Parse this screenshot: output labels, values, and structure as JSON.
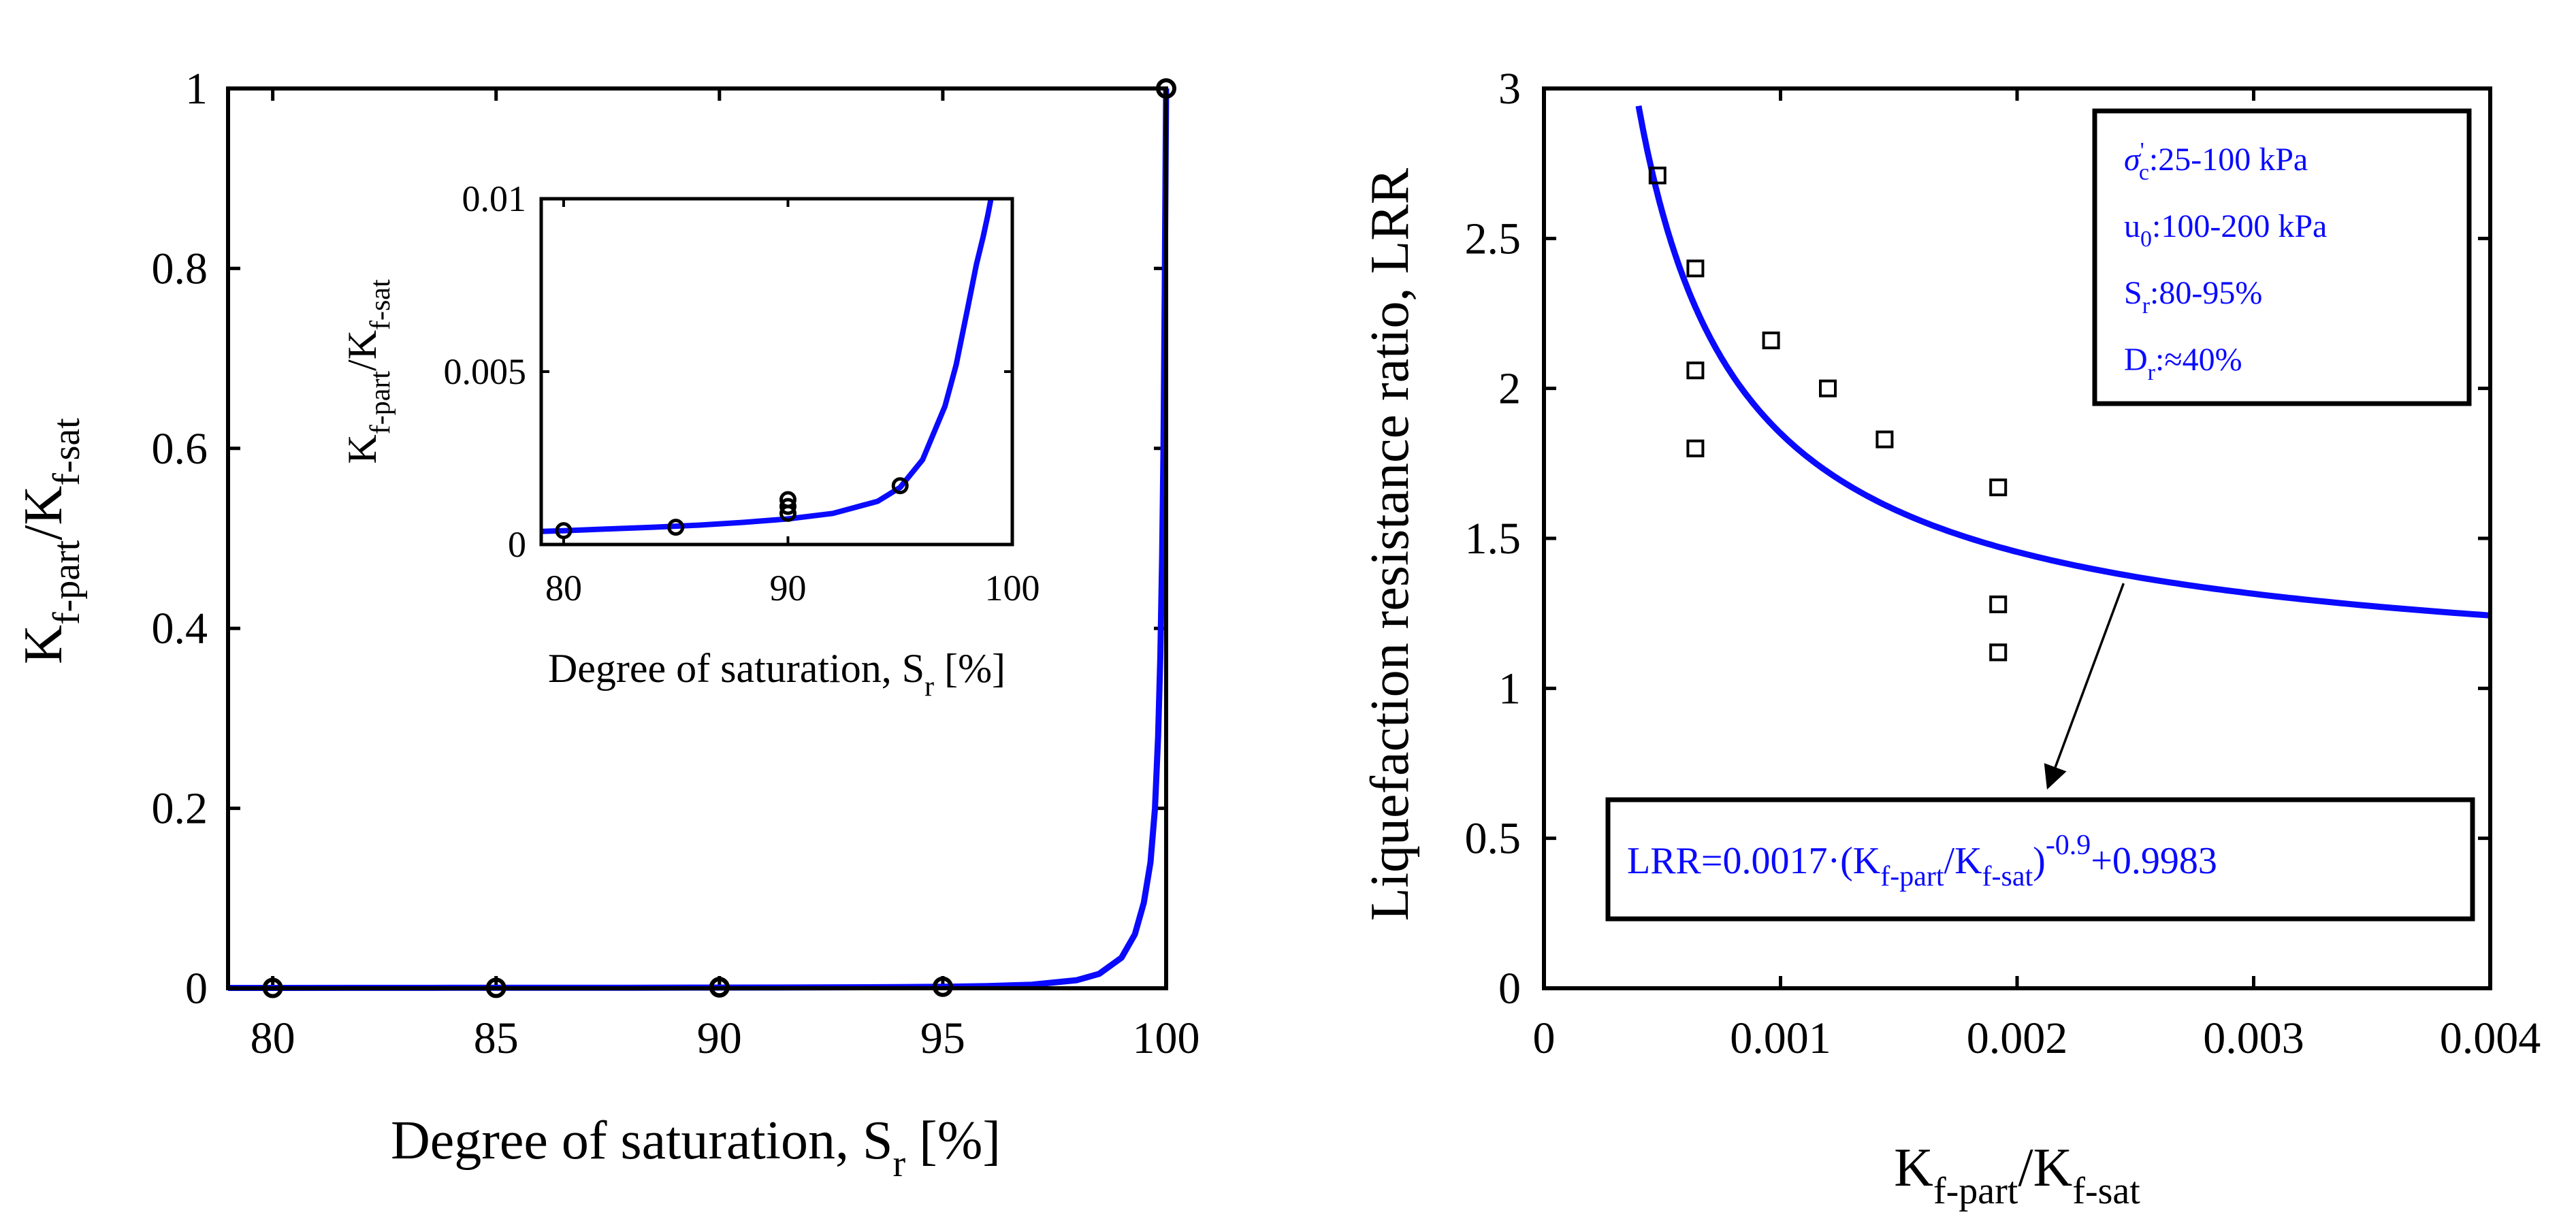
{
  "chart_data": [
    {
      "id": "left",
      "type": "line",
      "xlabel": {
        "main": "Degree of saturation, S",
        "sub": "r",
        "tail": " [%]"
      },
      "ylabel": {
        "k1": "K",
        "s1": "f-part",
        "slash": "/K",
        "s2": "f-sat"
      },
      "xlim": [
        79,
        100
      ],
      "ylim": [
        0,
        1
      ],
      "xticks": [
        80,
        85,
        90,
        95,
        100
      ],
      "yticks": [
        0,
        0.2,
        0.4,
        0.6,
        0.8,
        1
      ],
      "ytick_labels": [
        "0",
        "0.2",
        "0.4",
        "0.6",
        "0.8",
        "1"
      ],
      "curve": {
        "name": "fit",
        "color": "#0a0aff",
        "x": [
          79,
          80,
          82,
          84,
          85,
          86,
          88,
          90,
          92,
          94,
          95,
          96,
          97,
          98,
          98.5,
          99,
          99.3,
          99.5,
          99.65,
          99.75,
          99.82,
          99.87,
          99.91,
          99.94,
          99.97,
          99.99,
          100
        ],
        "y": [
          0.00038,
          0.0004,
          0.00045,
          0.0005,
          0.00053,
          0.00056,
          0.00064,
          0.00074,
          0.0009,
          0.00125,
          0.00165,
          0.00245,
          0.004,
          0.009,
          0.016,
          0.034,
          0.06,
          0.095,
          0.14,
          0.2,
          0.28,
          0.37,
          0.48,
          0.6,
          0.78,
          0.93,
          1.0
        ]
      },
      "points": {
        "name": "measured",
        "x": [
          80,
          85,
          90,
          90,
          90,
          95,
          100
        ],
        "y": [
          0.0004,
          0.0005,
          0.0009,
          0.0011,
          0.0013,
          0.0017,
          1.0
        ]
      },
      "inset": {
        "xlabel": {
          "main": "Degree of saturation, S",
          "sub": "r",
          "tail": " [%]"
        },
        "ylabel": {
          "k1": "K",
          "s1": "f-part",
          "slash": "/K",
          "s2": "f-sat"
        },
        "xlim": [
          79,
          100
        ],
        "ylim": [
          0,
          0.01
        ],
        "xticks": [
          80,
          90,
          100
        ],
        "yticks": [
          0,
          0.005,
          0.01
        ],
        "ytick_labels": [
          "0",
          "0.005",
          "0.01"
        ],
        "curve_x": [
          79,
          80,
          82,
          84,
          86,
          88,
          90,
          92,
          94,
          95,
          96,
          97,
          97.5,
          98,
          98.4,
          98.7,
          98.9,
          99.05
        ],
        "curve_y": [
          0.00038,
          0.0004,
          0.00045,
          0.0005,
          0.00056,
          0.00064,
          0.00074,
          0.0009,
          0.00125,
          0.00165,
          0.00245,
          0.004,
          0.0052,
          0.0068,
          0.0081,
          0.0089,
          0.0095,
          0.01
        ],
        "points_x": [
          80,
          85,
          90,
          90,
          90,
          95
        ],
        "points_y": [
          0.0004,
          0.0005,
          0.0009,
          0.0011,
          0.0013,
          0.0017
        ]
      }
    },
    {
      "id": "right",
      "type": "scatter",
      "xlabel": {
        "k1": "K",
        "s1": "f-part",
        "slash": "/K",
        "s2": "f-sat"
      },
      "ylabel": "Liquefaction resistance ratio, LRR",
      "xlim": [
        0,
        0.004
      ],
      "ylim": [
        0,
        3
      ],
      "xticks": [
        0,
        0.001,
        0.002,
        0.003,
        0.004
      ],
      "xtick_labels": [
        "0",
        "0.001",
        "0.002",
        "0.003",
        "0.004"
      ],
      "yticks": [
        0,
        0.5,
        1,
        1.5,
        2,
        2.5,
        3
      ],
      "ytick_labels": [
        "0",
        "0.5",
        "1",
        "1.5",
        "2",
        "2.5",
        "3"
      ],
      "points": {
        "name": "test data",
        "x": [
          0.00048,
          0.00064,
          0.00064,
          0.00064,
          0.00096,
          0.0012,
          0.00144,
          0.00192,
          0.00192,
          0.00192
        ],
        "y": [
          2.71,
          2.4,
          2.06,
          1.8,
          2.16,
          2.0,
          1.83,
          1.67,
          1.28,
          1.12
        ]
      },
      "fit": {
        "a": 0.0017,
        "b": -0.9,
        "c": 0.9983,
        "x_start": 0.0004,
        "x_end": 0.004,
        "color": "#0a0aff"
      },
      "equation": {
        "lead": "LRR=0.0017·(K",
        "s1": "f-part",
        "mid": "/K",
        "s2": "f-sat",
        "close": ")",
        "exp": "-0.9",
        "tail": "+0.9983"
      },
      "legend_box": {
        "line1": {
          "sym": "σ",
          "sup": "'",
          "sub": "c",
          "text": ":25-100 kPa"
        },
        "line2": {
          "sym": "u",
          "sub": "0",
          "text": ":100-200 kPa"
        },
        "line3": {
          "sym": "S",
          "sub": "r",
          "text": ":80-95%"
        },
        "line4": {
          "sym": "D",
          "sub": "r",
          "text": ":≈40%"
        }
      },
      "annotation_arrow": {
        "from": [
          0.00245,
          1.35
        ],
        "to": [
          0.00213,
          0.67
        ]
      }
    }
  ]
}
